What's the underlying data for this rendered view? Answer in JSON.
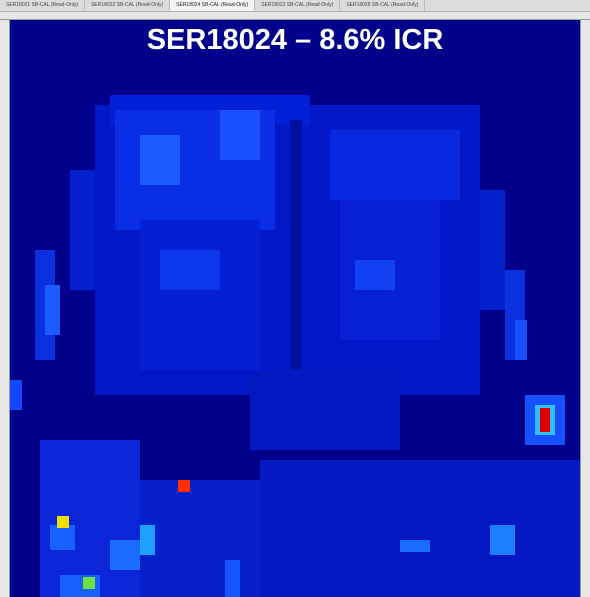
{
  "tabs": [
    "SER18021 SB-CAL (Read-Only)",
    "SER18022 SB-CAL (Read-Only)",
    "SER18024 SB-CAL (Read-Only)",
    "SER18023 SB-CAL (Read-Only)",
    "SER18028 SB-CAL (Read-Only)"
  ],
  "title": "SER18024 – 8.6% ICR"
}
